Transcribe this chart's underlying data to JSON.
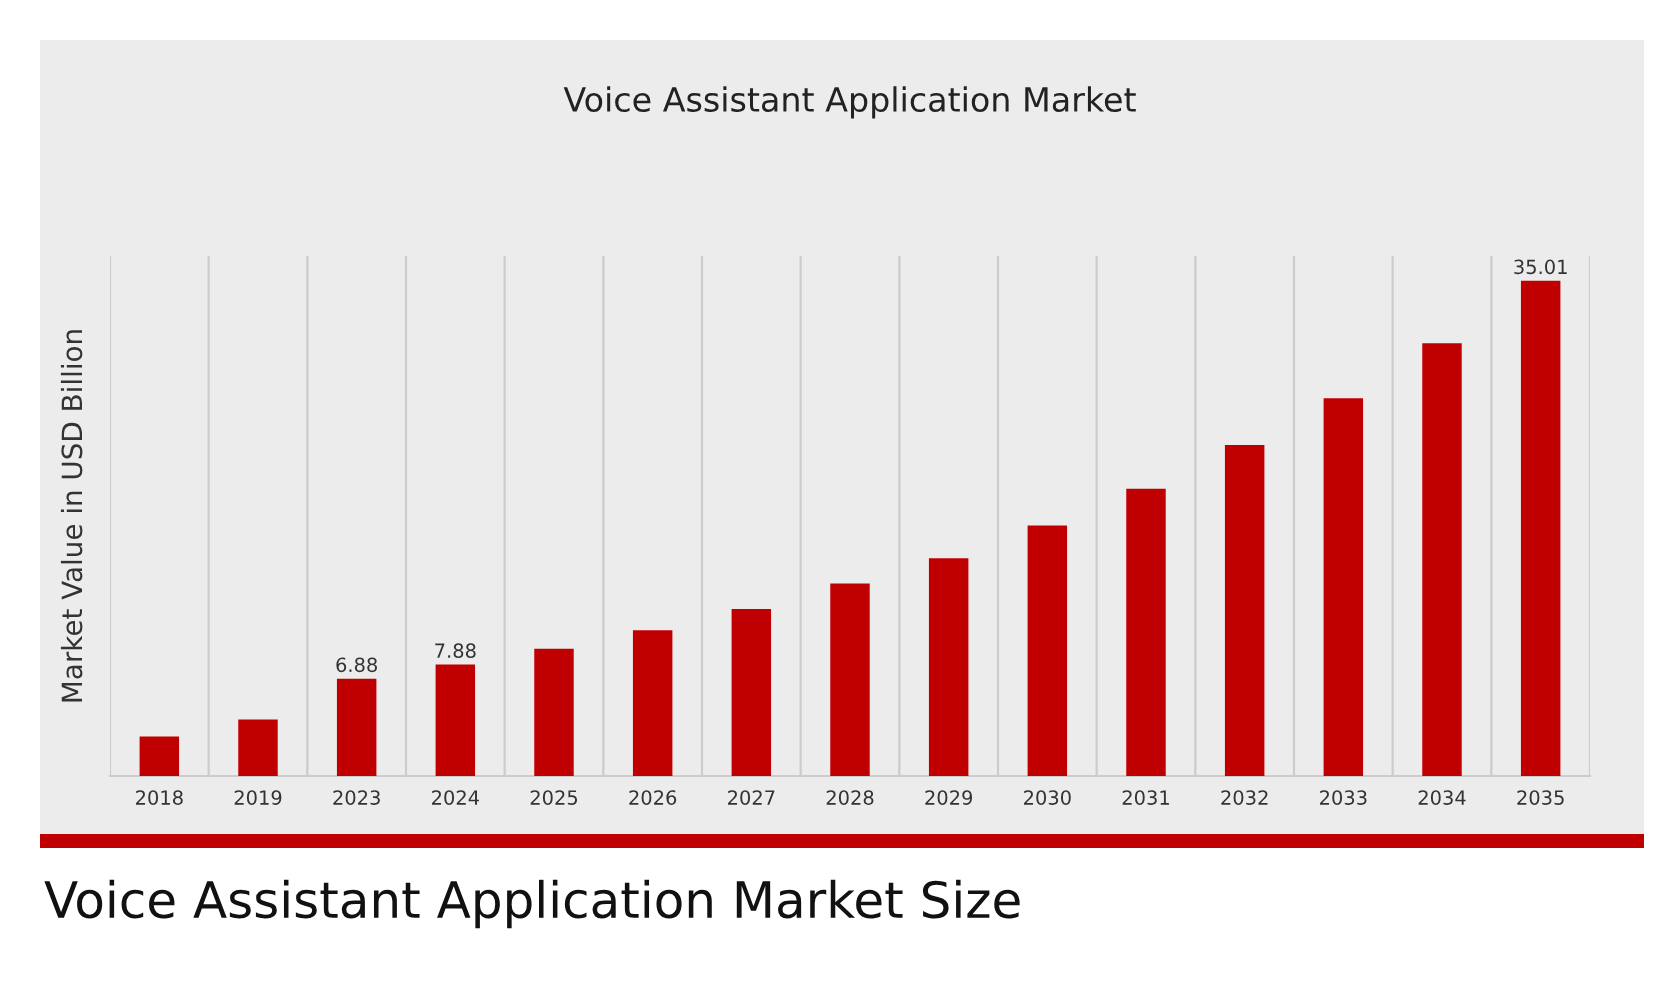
{
  "chart_data": {
    "type": "bar",
    "title": "Voice Assistant Application Market",
    "ylabel": "Market Value in USD Billion",
    "categories": [
      "2018",
      "2019",
      "2023",
      "2024",
      "2025",
      "2026",
      "2027",
      "2028",
      "2029",
      "2030",
      "2031",
      "2032",
      "2033",
      "2034",
      "2035"
    ],
    "values": [
      2.8,
      4.0,
      6.88,
      7.88,
      9.0,
      10.3,
      11.8,
      13.6,
      15.4,
      17.7,
      20.3,
      23.4,
      26.7,
      30.6,
      35.01
    ],
    "value_labels": [
      null,
      null,
      "6.88",
      "7.88",
      null,
      null,
      null,
      null,
      null,
      null,
      null,
      null,
      null,
      null,
      "35.01"
    ],
    "color": "#c00000",
    "grid": "x",
    "tick_labels": "x",
    "annotations": [
      "Voice Assistant Application Market Size"
    ]
  }
}
